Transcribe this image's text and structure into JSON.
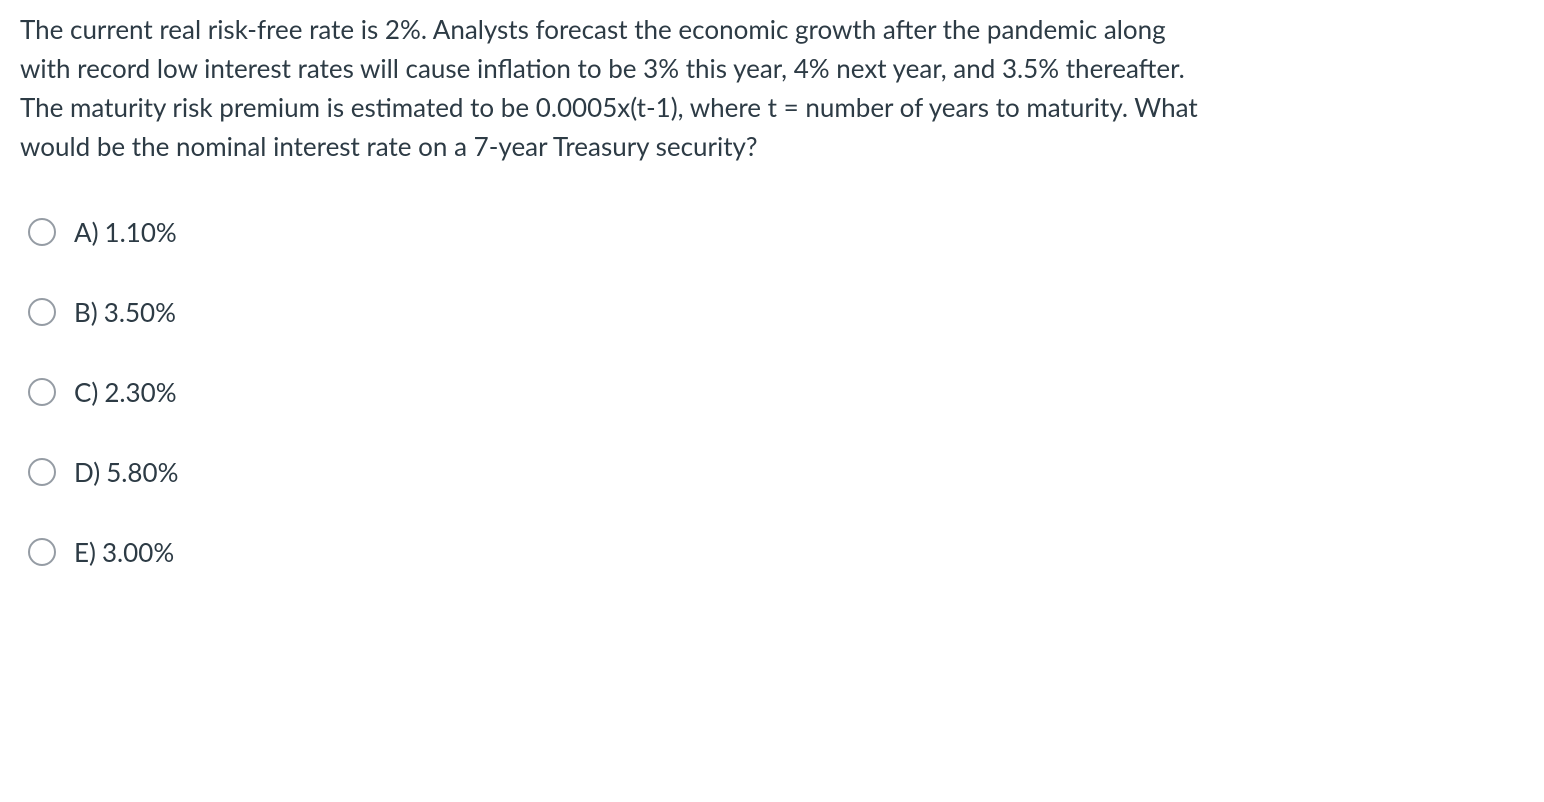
{
  "question": {
    "text": "The current real risk-free rate is 2%. Analysts forecast the economic growth after the pandemic along with record low interest rates will cause inflation to be 3% this year, 4% next year, and 3.5% thereafter. The maturity risk premium is estimated to be 0.0005x(t-1), where t = number of years to maturity. What would be the nominal interest rate on a 7-year Treasury security?"
  },
  "options": [
    {
      "letter": "A)",
      "value": "1.10%"
    },
    {
      "letter": "B)",
      "value": "3.50%"
    },
    {
      "letter": "C)",
      "value": "2.30%"
    },
    {
      "letter": "D)",
      "value": "5.80%"
    },
    {
      "letter": "E)",
      "value": "3.00%"
    }
  ],
  "colors": {
    "text": "#2d3b45",
    "background": "#ffffff",
    "radio_border": "#959ca4"
  },
  "typography": {
    "question_fontsize": 26,
    "option_fontsize": 26,
    "line_height": 1.5
  }
}
